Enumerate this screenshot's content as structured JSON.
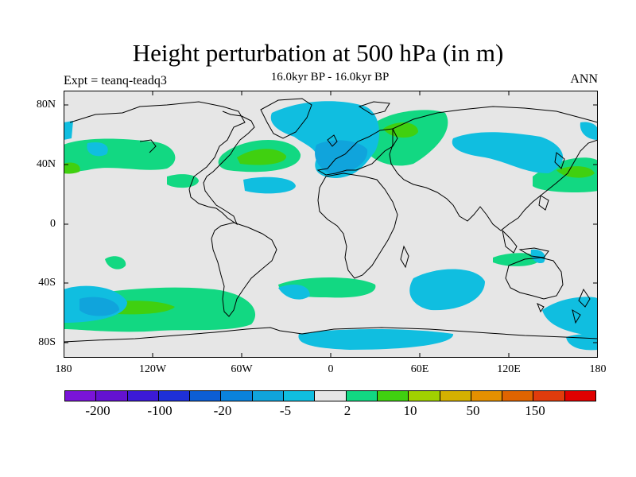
{
  "title": "Height perturbation at 500 hPa (in m)",
  "subtitle": "16.0kyr BP - 16.0kyr BP",
  "left_label": "Expt = teanq-teadq3",
  "right_label": "ANN",
  "lat_labels": [
    "80N",
    "40N",
    "0",
    "40S",
    "80S"
  ],
  "lon_labels": [
    "180",
    "120W",
    "60W",
    "0",
    "60E",
    "120E",
    "180"
  ],
  "colorbar": {
    "colors": [
      "#7a14d8",
      "#6412d0",
      "#3c1ad6",
      "#1e30d8",
      "#0c5ed4",
      "#0a82dc",
      "#10a4dc",
      "#10bee0",
      "#e6e6e6",
      "#12d882",
      "#40d010",
      "#a0d000",
      "#d4b000",
      "#e49000",
      "#e06400",
      "#e03c0c",
      "#e00000"
    ],
    "labels": [
      "-200",
      "-100",
      "-20",
      "-5",
      "2",
      "10",
      "50",
      "150"
    ]
  },
  "map": {
    "background": "#e6e6e6",
    "positive_color": "#12d882",
    "strong_positive_color": "#40d010",
    "negative_color": "#10bee0",
    "strong_negative_color": "#10a4dc"
  }
}
